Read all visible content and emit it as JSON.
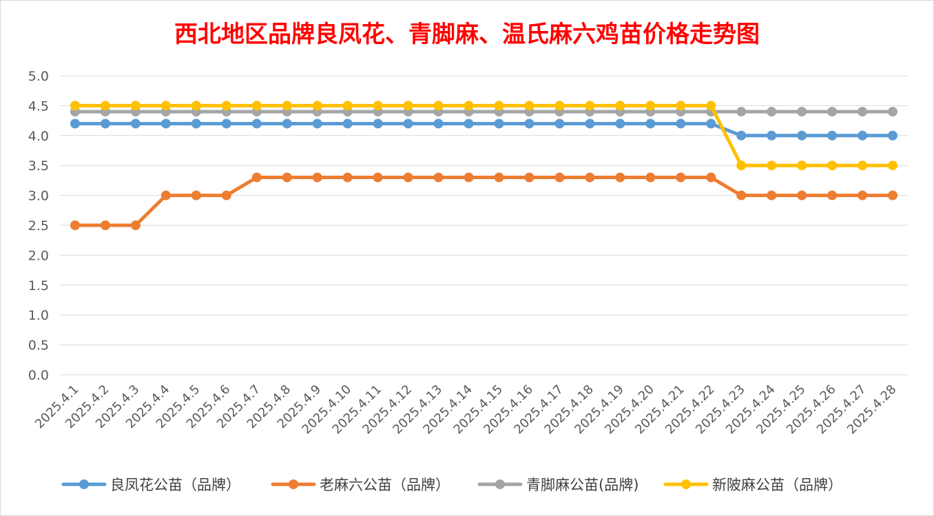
{
  "chart_data": {
    "type": "line",
    "title": "西北地区品牌良凤花、青脚麻、温氏麻六鸡苗价格走势图",
    "xlabel": "",
    "ylabel": "",
    "ylim": [
      0,
      5
    ],
    "yticks": [
      "0.0",
      "0.5",
      "1.0",
      "1.5",
      "2.0",
      "2.5",
      "3.0",
      "3.5",
      "4.0",
      "4.5",
      "5.0"
    ],
    "grid": true,
    "legend_position": "bottom",
    "categories": [
      "2025.4.1",
      "2025.4.2",
      "2025.4.3",
      "2025.4.4",
      "2025.4.5",
      "2025.4.6",
      "2025.4.7",
      "2025.4.8",
      "2025.4.9",
      "2025.4.10",
      "2025.4.11",
      "2025.4.12",
      "2025.4.13",
      "2025.4.14",
      "2025.4.15",
      "2025.4.16",
      "2025.4.17",
      "2025.4.18",
      "2025.4.19",
      "2025.4.20",
      "2025.4.21",
      "2025.4.22",
      "2025.4.23",
      "2025.4.24",
      "2025.4.25",
      "2025.4.26",
      "2025.4.27",
      "2025.4.28"
    ],
    "series": [
      {
        "name": "良凤花公苗（品牌）",
        "color": "#5b9bd5",
        "values": [
          4.2,
          4.2,
          4.2,
          4.2,
          4.2,
          4.2,
          4.2,
          4.2,
          4.2,
          4.2,
          4.2,
          4.2,
          4.2,
          4.2,
          4.2,
          4.2,
          4.2,
          4.2,
          4.2,
          4.2,
          4.2,
          4.2,
          4.0,
          4.0,
          4.0,
          4.0,
          4.0,
          4.0
        ]
      },
      {
        "name": "老麻六公苗（品牌）",
        "color": "#ed7d31",
        "values": [
          2.5,
          2.5,
          2.5,
          3.0,
          3.0,
          3.0,
          3.3,
          3.3,
          3.3,
          3.3,
          3.3,
          3.3,
          3.3,
          3.3,
          3.3,
          3.3,
          3.3,
          3.3,
          3.3,
          3.3,
          3.3,
          3.3,
          3.0,
          3.0,
          3.0,
          3.0,
          3.0,
          3.0
        ]
      },
      {
        "name": "青脚麻公苗(品牌)",
        "color": "#a5a5a5",
        "values": [
          4.4,
          4.4,
          4.4,
          4.4,
          4.4,
          4.4,
          4.4,
          4.4,
          4.4,
          4.4,
          4.4,
          4.4,
          4.4,
          4.4,
          4.4,
          4.4,
          4.4,
          4.4,
          4.4,
          4.4,
          4.4,
          4.4,
          4.4,
          4.4,
          4.4,
          4.4,
          4.4,
          4.4
        ]
      },
      {
        "name": "新陂麻公苗（品牌）",
        "color": "#ffc000",
        "values": [
          4.5,
          4.5,
          4.5,
          4.5,
          4.5,
          4.5,
          4.5,
          4.5,
          4.5,
          4.5,
          4.5,
          4.5,
          4.5,
          4.5,
          4.5,
          4.5,
          4.5,
          4.5,
          4.5,
          4.5,
          4.5,
          4.5,
          3.5,
          3.5,
          3.5,
          3.5,
          3.5,
          3.5
        ]
      }
    ],
    "draw_order": [
      2,
      0,
      1,
      3
    ],
    "gridline_color": "#d9d9d9",
    "title_color": "#ff0000"
  }
}
